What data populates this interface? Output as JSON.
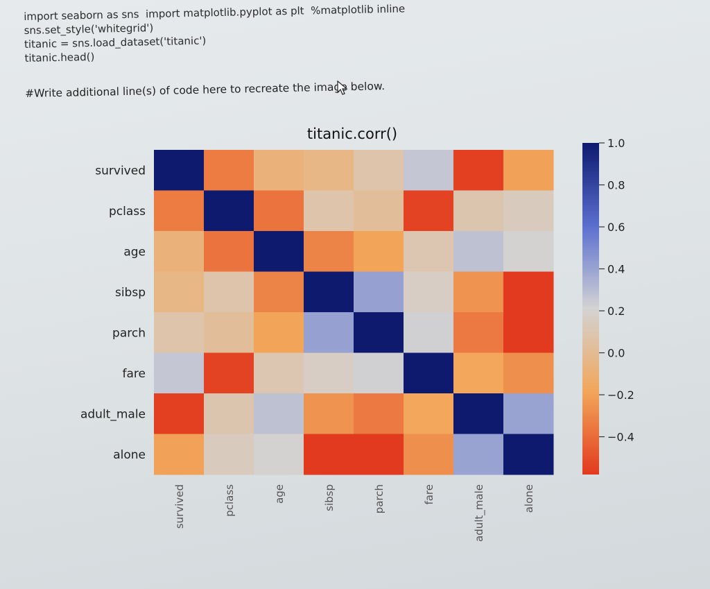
{
  "code": {
    "lines": [
      "import seaborn as sns  import matplotlib.pyplot as plt  %matplotlib inline",
      "sns.set_style('whitegrid')",
      "titanic = sns.load_dataset('titanic')",
      "titanic.head()"
    ],
    "instruction": "#Write additional line(s) of code here to recreate the image below."
  },
  "chart_data": {
    "type": "heatmap",
    "title": "titanic.corr()",
    "rows": [
      "survived",
      "pclass",
      "age",
      "sibsp",
      "parch",
      "fare",
      "adult_male",
      "alone"
    ],
    "columns": [
      "survived",
      "pclass",
      "age",
      "sibsp",
      "parch",
      "fare",
      "adult_male",
      "alone"
    ],
    "values": [
      [
        1.0,
        -0.34,
        -0.08,
        -0.04,
        0.08,
        0.26,
        -0.56,
        -0.2
      ],
      [
        -0.34,
        1.0,
        -0.37,
        0.08,
        0.02,
        -0.55,
        0.09,
        0.14
      ],
      [
        -0.08,
        -0.37,
        1.0,
        -0.31,
        -0.19,
        0.1,
        0.28,
        0.2
      ],
      [
        -0.04,
        0.08,
        -0.31,
        1.0,
        0.41,
        0.16,
        -0.25,
        -0.58
      ],
      [
        0.08,
        0.02,
        -0.19,
        0.41,
        1.0,
        0.22,
        -0.35,
        -0.58
      ],
      [
        0.26,
        -0.55,
        0.1,
        0.16,
        0.22,
        1.0,
        -0.18,
        -0.27
      ],
      [
        -0.56,
        0.09,
        0.28,
        -0.25,
        -0.35,
        -0.18,
        1.0,
        0.4
      ],
      [
        -0.2,
        0.14,
        0.2,
        -0.58,
        -0.58,
        -0.27,
        0.4,
        1.0
      ]
    ],
    "colorbar": {
      "min": -0.58,
      "max": 1.0,
      "ticks": [
        1.0,
        0.8,
        0.6,
        0.4,
        0.2,
        0.0,
        -0.2,
        -0.4
      ],
      "tick_labels": [
        "1.0",
        "0.8",
        "0.6",
        "0.4",
        "0.2",
        "0.0",
        "−0.2",
        "−0.4"
      ]
    },
    "colors": {
      "high": "#0d1a6e",
      "mid_upper": "#5b6fd0",
      "mid": "#d3d3d3",
      "mid_lower": "#f2a65a",
      "low": "#e23a1e"
    }
  }
}
